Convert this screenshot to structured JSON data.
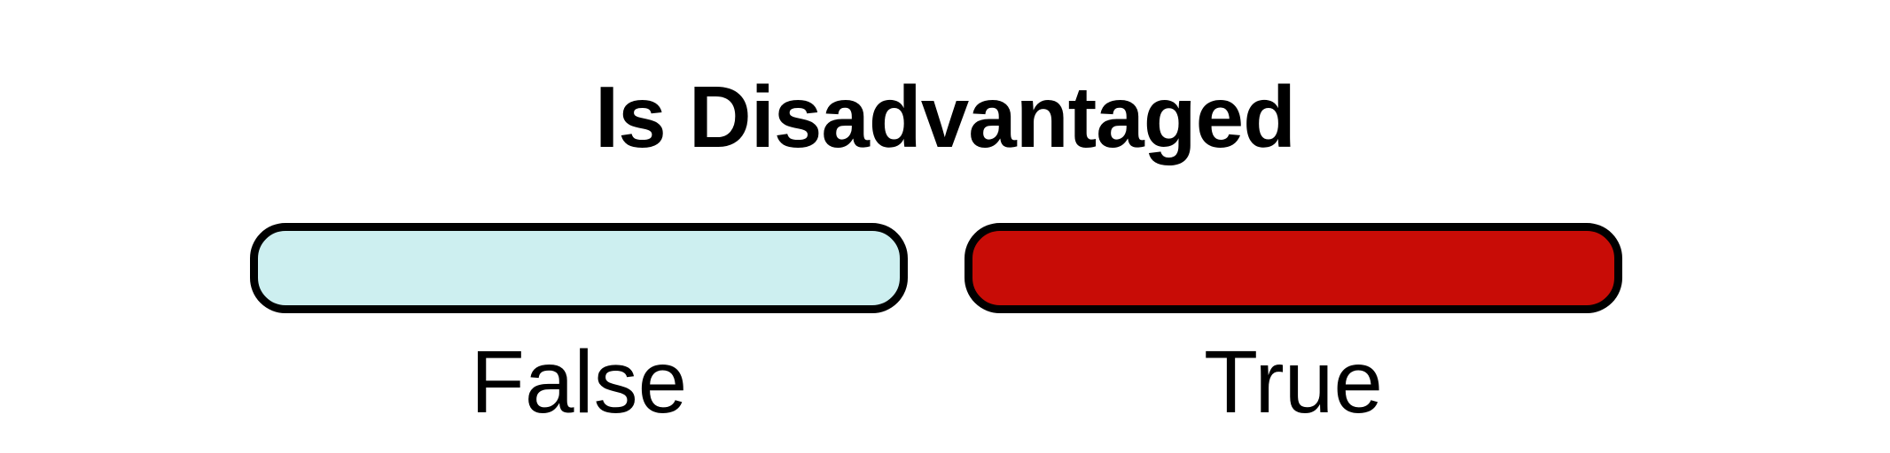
{
  "legend": {
    "title": "Is Disadvantaged",
    "items": [
      {
        "label": "False",
        "color": "#cdeff0"
      },
      {
        "label": "True",
        "color": "#c80c06"
      }
    ]
  }
}
